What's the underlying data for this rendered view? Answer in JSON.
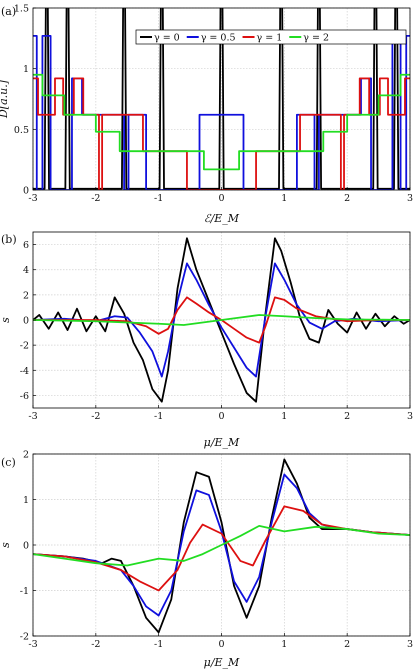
{
  "chart_data": [
    {
      "type": "line",
      "panel": "(a)",
      "xlabel": "ℰ/E_M",
      "ylabel": "D[a.u.]",
      "xlim": [
        -3,
        3
      ],
      "ylim": [
        0,
        1.5
      ],
      "xticks": [
        -3,
        -2,
        -1,
        0,
        1,
        2,
        3
      ],
      "yticks": [
        0,
        0.5,
        1,
        1.5
      ],
      "grid": true,
      "legend_position": "top-center",
      "series": [
        {
          "name": "γ = 0",
          "color": "#000000",
          "peaks": [
            -2.78,
            -2.45,
            -1.55,
            -0.95,
            0,
            0.95,
            1.55,
            2.45,
            2.78
          ]
        },
        {
          "name": "γ = 0.5",
          "color": "#1010dd",
          "steps": [
            [
              -3.0,
              1.27
            ],
            [
              -2.94,
              0.0
            ],
            [
              -2.85,
              1.27
            ],
            [
              -2.72,
              0.0
            ],
            [
              -2.38,
              0.92
            ],
            [
              -2.22,
              0.62
            ],
            [
              -1.55,
              0.0
            ],
            [
              -1.48,
              0.62
            ],
            [
              -1.2,
              0.0
            ],
            [
              -0.35,
              0.62
            ],
            [
              0.0,
              0.62
            ],
            [
              0.35,
              0.0
            ],
            [
              1.2,
              0.62
            ],
            [
              1.48,
              0.0
            ],
            [
              1.55,
              0.62
            ],
            [
              2.22,
              0.92
            ],
            [
              2.38,
              0.0
            ],
            [
              2.72,
              1.27
            ],
            [
              2.85,
              0.0
            ],
            [
              2.94,
              1.27
            ]
          ]
        },
        {
          "name": "γ = 1",
          "color": "#dd1010",
          "steps": [
            [
              -3.0,
              0.92
            ],
            [
              -2.92,
              0.62
            ],
            [
              -2.65,
              0.92
            ],
            [
              -2.52,
              0.62
            ],
            [
              -2.35,
              0.92
            ],
            [
              -2.2,
              0.62
            ],
            [
              -1.95,
              0.0
            ],
            [
              -1.9,
              0.62
            ],
            [
              -1.25,
              0.32
            ],
            [
              -0.55,
              0.0
            ],
            [
              0.0,
              0.0
            ],
            [
              0.55,
              0.32
            ],
            [
              1.25,
              0.62
            ],
            [
              1.9,
              0.0
            ],
            [
              1.95,
              0.62
            ],
            [
              2.2,
              0.92
            ],
            [
              2.35,
              0.62
            ],
            [
              2.52,
              0.92
            ],
            [
              2.65,
              0.62
            ],
            [
              2.92,
              0.92
            ]
          ]
        },
        {
          "name": "γ = 2",
          "color": "#22dd22",
          "steps": [
            [
              -3.0,
              0.95
            ],
            [
              -2.85,
              0.78
            ],
            [
              -2.5,
              0.62
            ],
            [
              -2.0,
              0.48
            ],
            [
              -1.62,
              0.32
            ],
            [
              -0.28,
              0.17
            ],
            [
              0.0,
              0.17
            ],
            [
              0.28,
              0.32
            ],
            [
              1.62,
              0.48
            ],
            [
              2.0,
              0.62
            ],
            [
              2.5,
              0.78
            ],
            [
              2.85,
              0.95
            ]
          ]
        }
      ]
    },
    {
      "type": "line",
      "panel": "(b)",
      "xlabel": "μ/E_M",
      "ylabel": "s",
      "xlim": [
        -3,
        3
      ],
      "ylim": [
        -7,
        7
      ],
      "xticks": [
        -3,
        -2,
        -1,
        0,
        1,
        2,
        3
      ],
      "yticks": [
        -6,
        -4,
        -2,
        0,
        2,
        4,
        6
      ],
      "grid": true,
      "series": [
        {
          "name": "γ = 0",
          "color": "#000000",
          "x": [
            -3,
            -2.9,
            -2.75,
            -2.6,
            -2.45,
            -2.3,
            -2.15,
            -2.0,
            -1.85,
            -1.7,
            -1.55,
            -1.4,
            -1.25,
            -1.1,
            -0.95,
            -0.85,
            -0.7,
            -0.55,
            -0.4,
            -0.2,
            0,
            0.2,
            0.4,
            0.55,
            0.7,
            0.85,
            0.95,
            1.1,
            1.25,
            1.4,
            1.55,
            1.7,
            1.85,
            2.0,
            2.15,
            2.3,
            2.45,
            2.6,
            2.75,
            2.9,
            3
          ],
          "y": [
            0.0,
            0.4,
            -0.7,
            0.6,
            -0.8,
            0.9,
            -0.9,
            0.3,
            -0.9,
            1.8,
            0.5,
            -1.8,
            -3.2,
            -5.5,
            -6.5,
            -4.0,
            2.5,
            6.5,
            4.0,
            1.5,
            -1.0,
            -3.5,
            -5.8,
            -6.5,
            0.5,
            6.5,
            5.5,
            3.0,
            0.2,
            -1.5,
            -1.8,
            0.8,
            -0.3,
            -1.0,
            0.6,
            -0.7,
            0.5,
            -0.5,
            0.3,
            -0.3,
            0.0
          ]
        },
        {
          "name": "γ = 0.5",
          "color": "#1010dd",
          "x": [
            -3,
            -2.5,
            -2.0,
            -1.7,
            -1.5,
            -1.3,
            -1.1,
            -0.95,
            -0.85,
            -0.7,
            -0.55,
            -0.4,
            -0.2,
            0,
            0.2,
            0.4,
            0.55,
            0.7,
            0.85,
            1.0,
            1.2,
            1.4,
            1.6,
            1.8,
            2.1,
            2.5,
            3
          ],
          "y": [
            0.0,
            0.1,
            -0.1,
            0.3,
            0.2,
            -1.0,
            -2.5,
            -4.5,
            -2.5,
            1.5,
            4.5,
            3.2,
            1.2,
            -0.6,
            -2.2,
            -3.8,
            -4.5,
            0.3,
            4.5,
            3.2,
            1.2,
            -0.2,
            -0.7,
            -0.1,
            0.1,
            -0.1,
            0.0
          ]
        },
        {
          "name": "γ = 1",
          "color": "#dd1010",
          "x": [
            -3,
            -2.0,
            -1.5,
            -1.2,
            -1.0,
            -0.85,
            -0.7,
            -0.55,
            -0.4,
            -0.2,
            0,
            0.2,
            0.4,
            0.6,
            0.7,
            0.85,
            1.0,
            1.2,
            1.5,
            2.0,
            2.5,
            3
          ],
          "y": [
            0.0,
            0.0,
            -0.1,
            -0.5,
            -1.1,
            -0.7,
            0.8,
            1.8,
            1.3,
            0.6,
            0.0,
            -0.7,
            -1.4,
            -1.8,
            -0.5,
            1.8,
            1.6,
            0.9,
            0.3,
            -0.1,
            0.0,
            0.0
          ]
        },
        {
          "name": "γ = 2",
          "color": "#22dd22",
          "x": [
            -3,
            -2.0,
            -1.5,
            -1.0,
            -0.6,
            -0.3,
            0,
            0.3,
            0.6,
            1.0,
            1.5,
            2.0,
            3
          ],
          "y": [
            0.0,
            -0.1,
            -0.2,
            -0.3,
            -0.4,
            -0.2,
            0.0,
            0.2,
            0.4,
            0.3,
            0.15,
            0.05,
            0.0
          ]
        }
      ]
    },
    {
      "type": "line",
      "panel": "(c)",
      "xlabel": "μ/E_M",
      "ylabel": "s",
      "xlim": [
        -3,
        3
      ],
      "ylim": [
        -2,
        2
      ],
      "xticks": [
        -3,
        -2,
        -1,
        0,
        1,
        2,
        3
      ],
      "yticks": [
        -2,
        -1,
        0,
        1,
        2
      ],
      "grid": true,
      "series": [
        {
          "name": "γ = 0",
          "color": "#000000",
          "x": [
            -3,
            -2.5,
            -2.2,
            -1.9,
            -1.75,
            -1.6,
            -1.4,
            -1.2,
            -1.0,
            -0.8,
            -0.6,
            -0.4,
            -0.2,
            0,
            0.2,
            0.4,
            0.6,
            0.8,
            1.0,
            1.2,
            1.4,
            1.6,
            1.8,
            2.0,
            2.4,
            3
          ],
          "y": [
            -0.2,
            -0.25,
            -0.3,
            -0.4,
            -0.3,
            -0.35,
            -0.9,
            -1.6,
            -1.92,
            -1.2,
            0.5,
            1.6,
            1.5,
            0.5,
            -0.9,
            -1.6,
            -0.9,
            0.6,
            1.88,
            1.35,
            0.6,
            0.35,
            0.35,
            0.35,
            0.28,
            0.22
          ]
        },
        {
          "name": "γ = 0.5",
          "color": "#1010dd",
          "x": [
            -3,
            -2.5,
            -2.0,
            -1.6,
            -1.4,
            -1.2,
            -1.0,
            -0.8,
            -0.6,
            -0.4,
            -0.2,
            0,
            0.2,
            0.4,
            0.6,
            0.8,
            1.0,
            1.2,
            1.4,
            1.6,
            1.8,
            2.0,
            2.4,
            3
          ],
          "y": [
            -0.2,
            -0.25,
            -0.35,
            -0.55,
            -0.9,
            -1.35,
            -1.55,
            -1.0,
            0.3,
            1.2,
            1.1,
            0.3,
            -0.8,
            -1.25,
            -0.7,
            0.5,
            1.55,
            1.25,
            0.7,
            0.45,
            0.38,
            0.35,
            0.28,
            0.22
          ]
        },
        {
          "name": "γ = 1",
          "color": "#dd1010",
          "x": [
            -3,
            -2.5,
            -2.0,
            -1.6,
            -1.3,
            -1.0,
            -0.7,
            -0.5,
            -0.3,
            0,
            0.3,
            0.5,
            0.7,
            1.0,
            1.3,
            1.6,
            2.0,
            2.4,
            3
          ],
          "y": [
            -0.2,
            -0.25,
            -0.38,
            -0.55,
            -0.8,
            -1.0,
            -0.55,
            0.05,
            0.45,
            0.25,
            -0.35,
            -0.45,
            0.1,
            0.85,
            0.75,
            0.45,
            0.35,
            0.28,
            0.22
          ]
        },
        {
          "name": "γ = 2",
          "color": "#22dd22",
          "x": [
            -3,
            -2.5,
            -2.0,
            -1.5,
            -1.0,
            -0.6,
            -0.3,
            0,
            0.3,
            0.6,
            1.0,
            1.5,
            2.0,
            2.5,
            3
          ],
          "y": [
            -0.2,
            -0.3,
            -0.4,
            -0.45,
            -0.3,
            -0.35,
            -0.2,
            0.0,
            0.2,
            0.42,
            0.3,
            0.4,
            0.35,
            0.25,
            0.22
          ]
        }
      ]
    }
  ]
}
